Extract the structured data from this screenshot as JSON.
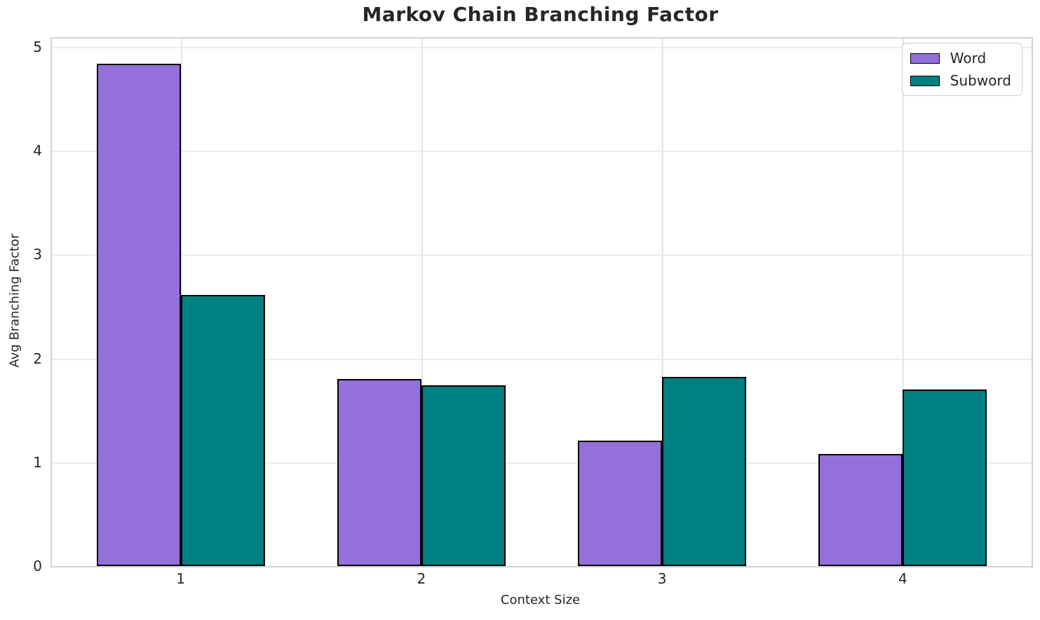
{
  "chart_data": {
    "type": "bar",
    "title": "Markov Chain Branching Factor",
    "xlabel": "Context Size",
    "ylabel": "Avg Branching Factor",
    "categories": [
      1,
      2,
      3,
      4
    ],
    "series": [
      {
        "name": "Word",
        "color": "#9370DB",
        "values": [
          4.84,
          1.8,
          1.21,
          1.08
        ]
      },
      {
        "name": "Subword",
        "color": "#008080",
        "values": [
          2.61,
          1.74,
          1.82,
          1.7
        ]
      }
    ],
    "bar_width": 0.35,
    "bar_edge_color": "#000000",
    "xlim": [
      0.465,
      4.535
    ],
    "ylim": [
      0,
      5.082
    ],
    "xticks": [
      1,
      2,
      3,
      4
    ],
    "yticks": [
      0,
      1,
      2,
      3,
      4,
      5
    ],
    "grid": true,
    "legend_position": "upper right"
  }
}
